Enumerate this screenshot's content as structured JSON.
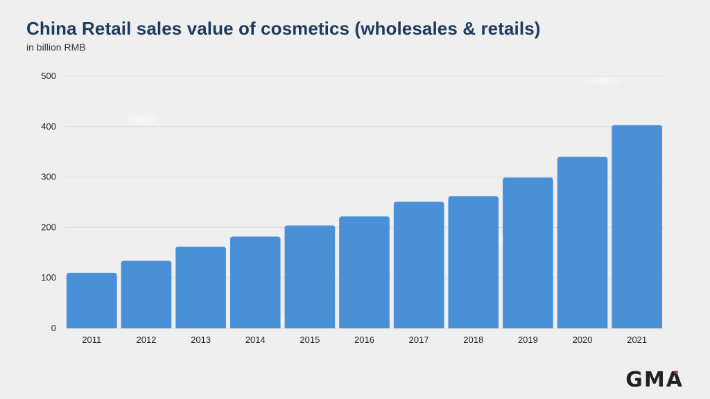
{
  "title": "China Retail sales value of cosmetics (wholesales & retails)",
  "subtitle": "in billion RMB",
  "logo_text": "GMA",
  "colors": {
    "bar": "#4a90d6",
    "title": "#1f3b5c",
    "grid": "#d8d8d8",
    "logo_accent": "#d32f2f"
  },
  "chart_data": {
    "type": "bar",
    "title": "China Retail sales value of cosmetics (wholesales & retails)",
    "subtitle": "in billion RMB",
    "categories": [
      "2011",
      "2012",
      "2013",
      "2014",
      "2015",
      "2016",
      "2017",
      "2018",
      "2019",
      "2020",
      "2021"
    ],
    "values": [
      110,
      134,
      162,
      182,
      204,
      222,
      251,
      262,
      299,
      340,
      403
    ],
    "ylim": [
      0,
      500
    ],
    "yticks": [
      "0",
      "100",
      "200",
      "300",
      "400",
      "500"
    ],
    "grid": true,
    "xlabel": "",
    "ylabel": ""
  }
}
